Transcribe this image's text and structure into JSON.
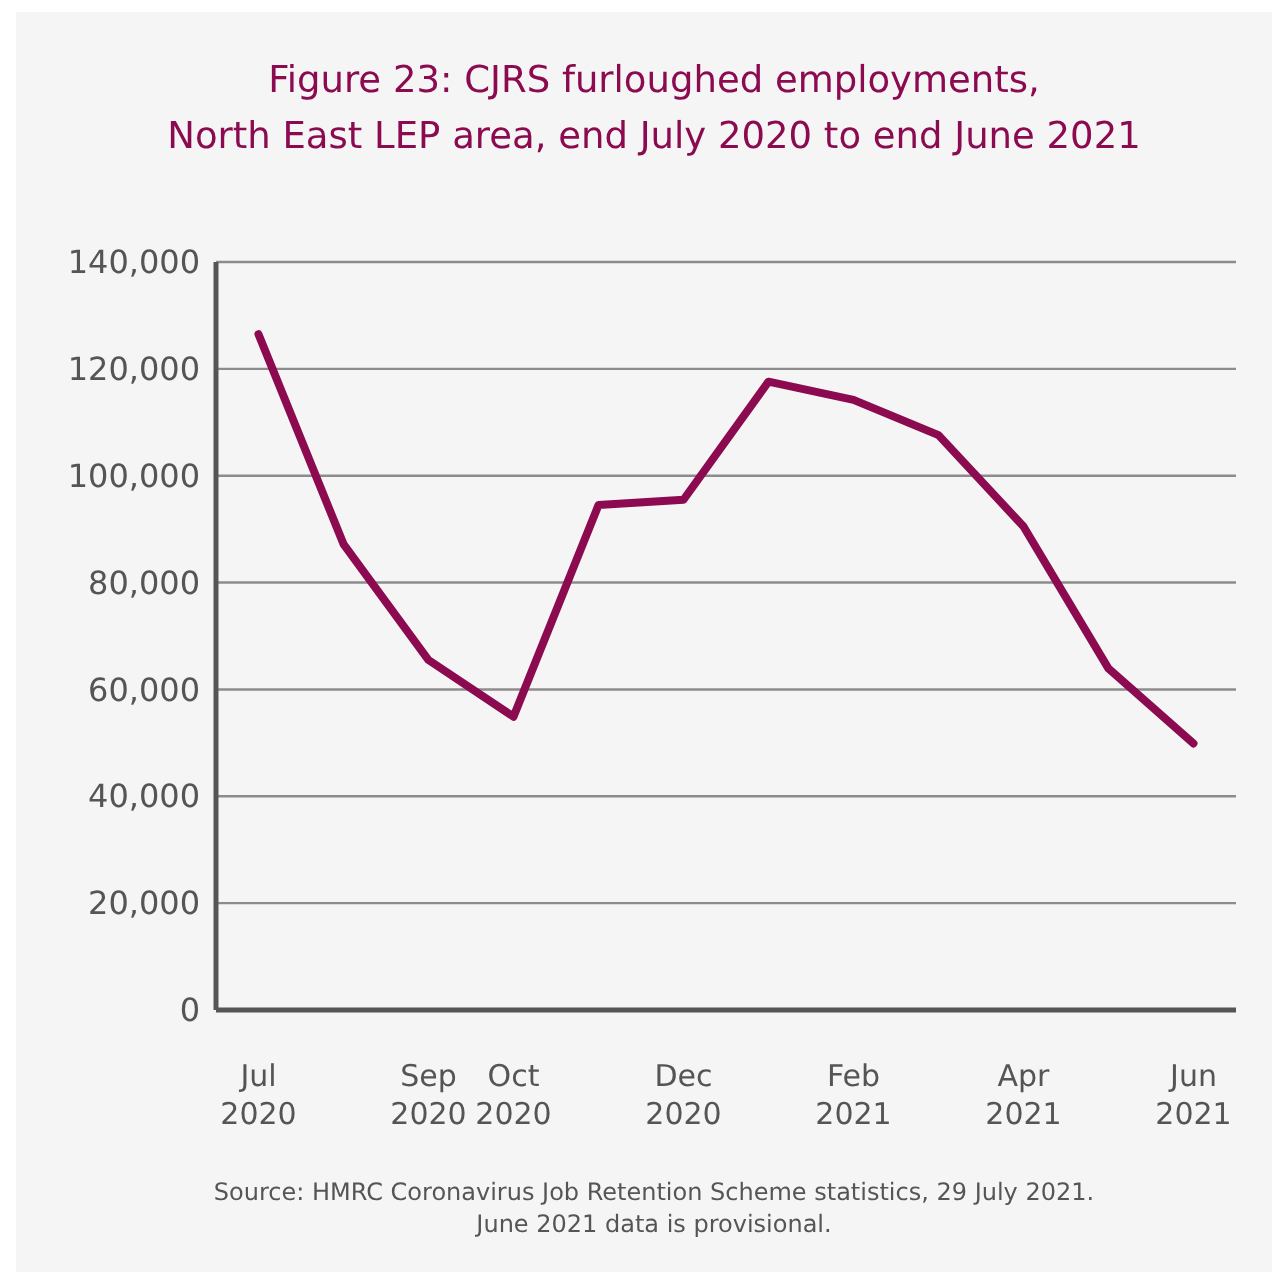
{
  "chart_data": {
    "type": "line",
    "title": "Figure 23: CJRS furloughed employments,\nNorth East LEP area, end July 2020 to end June 2021",
    "categories": [
      "Jul 2020",
      null,
      "Sep 2020",
      "Oct 2020",
      null,
      "Dec 2020",
      null,
      "Feb 2021",
      null,
      "Apr 2021",
      null,
      "Jun 2021"
    ],
    "series": [
      {
        "color": "#8b0a50",
        "values": [
          126500,
          87200,
          65500,
          54900,
          94500,
          95500,
          117600,
          114200,
          107600,
          90500,
          63900,
          49900
        ]
      }
    ],
    "ylim": [
      0,
      140000
    ],
    "yticks": [
      0,
      {
        "value": 20000,
        "label": "20,000"
      },
      {
        "value": 40000,
        "label": "40,000"
      },
      {
        "value": 60000,
        "label": "60,000"
      },
      {
        "value": 80000,
        "label": "80,000"
      },
      {
        "value": 100000,
        "label": "100,000"
      },
      {
        "value": 120000,
        "label": "120,000"
      },
      {
        "value": 140000,
        "label": "140,000"
      }
    ],
    "grid": "y",
    "annotations": [
      "Source: HMRC Coronavirus Job Retention Scheme statistics, 29 July 2021.",
      "June 2021 data is provisional."
    ]
  }
}
